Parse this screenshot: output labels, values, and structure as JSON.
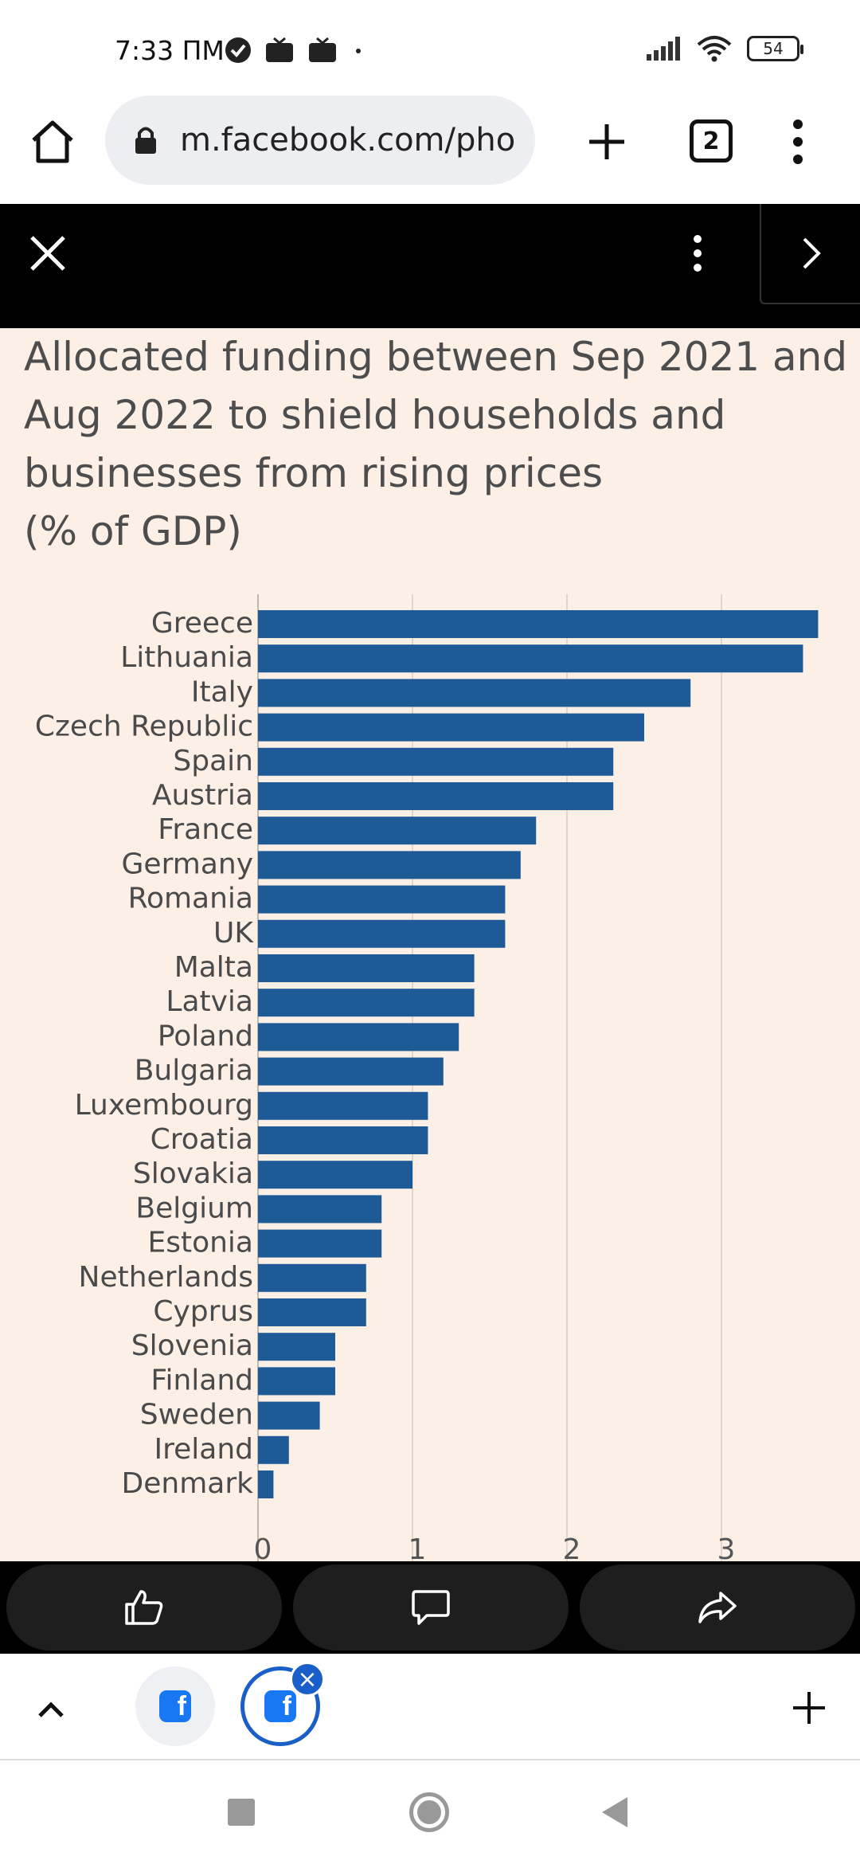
{
  "status_bar": {
    "time": "7:33 ПМ",
    "battery": "54"
  },
  "browser": {
    "url": "m.facebook.com/pho",
    "tab_count": "2"
  },
  "chart_data": {
    "type": "bar",
    "orientation": "horizontal",
    "title_lines": [
      "Allocated funding between Sep 2021 and",
      "Aug 2022 to shield households and",
      "businesses from rising prices",
      "(% of GDP)"
    ],
    "categories": [
      "Greece",
      "Lithuania",
      "Italy",
      "Czech Republic",
      "Spain",
      "Austria",
      "France",
      "Germany",
      "Romania",
      "UK",
      "Malta",
      "Latvia",
      "Poland",
      "Bulgaria",
      "Luxembourg",
      "Croatia",
      "Slovakia",
      "Belgium",
      "Estonia",
      "Netherlands",
      "Cyprus",
      "Slovenia",
      "Finland",
      "Sweden",
      "Ireland",
      "Denmark"
    ],
    "values": [
      3.7,
      3.6,
      2.8,
      2.5,
      2.3,
      2.3,
      1.8,
      1.7,
      1.6,
      1.6,
      1.4,
      1.4,
      1.3,
      1.2,
      1.1,
      1.1,
      1.0,
      0.8,
      0.8,
      0.7,
      0.7,
      0.5,
      0.5,
      0.4,
      0.2,
      0.1
    ],
    "xticks": [
      "0",
      "1",
      "2",
      "3"
    ],
    "xlim": [
      0,
      3.8
    ],
    "bar_color": "#1d5a96",
    "grid": true
  },
  "colors": {
    "chart_bg": "#fcefe6",
    "bar": "#1d5a96",
    "accent": "#1877f2"
  }
}
